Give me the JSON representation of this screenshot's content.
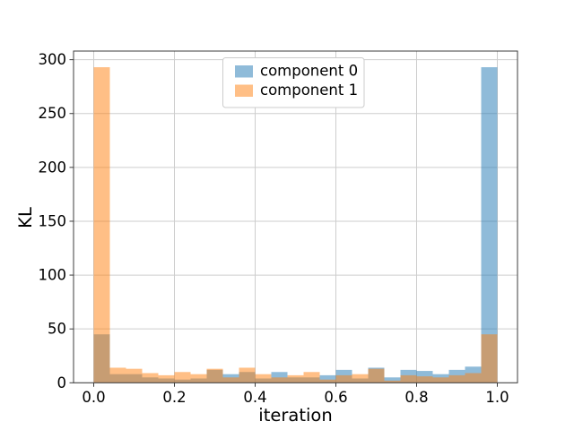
{
  "figure": {
    "xlabel": "iteration",
    "ylabel": "KL",
    "background": "#ffffff",
    "grid_color": "#cdcdcd",
    "spine_color": "#3c3c3c",
    "legend": {
      "border_color": "#cccccc",
      "items": [
        {
          "label": "component 0",
          "swatch": "blue-swatch"
        },
        {
          "label": "component 1",
          "swatch": "orange-swatch"
        }
      ]
    }
  },
  "chart_data": {
    "type": "bar",
    "subtype": "overlapping-histogram",
    "title": "",
    "xlabel": "iteration",
    "ylabel": "KL",
    "bin_start": 0.0,
    "bin_width": 0.04,
    "n_bins": 25,
    "xlim": [
      -0.05,
      1.05
    ],
    "ylim": [
      0,
      308
    ],
    "grid": true,
    "legend_position": "upper center",
    "bar_alpha": 0.5,
    "x_tick_labels": [
      "0.0",
      "0.2",
      "0.4",
      "0.6",
      "0.8",
      "1.0"
    ],
    "y_ticks": [
      0,
      50,
      100,
      150,
      200,
      250,
      300
    ],
    "series": [
      {
        "name": "component 0",
        "color": "#1f77b4",
        "values": [
          45,
          8,
          8,
          5,
          4,
          3,
          4,
          12,
          8,
          10,
          4,
          10,
          5,
          5,
          7,
          12,
          4,
          14,
          5,
          12,
          11,
          8,
          12,
          15,
          293
        ]
      },
      {
        "name": "component 1",
        "color": "#ff7f0e",
        "values": [
          293,
          14,
          13,
          9,
          7,
          10,
          8,
          13,
          5,
          14,
          8,
          5,
          7,
          10,
          3,
          7,
          8,
          13,
          2,
          7,
          6,
          5,
          7,
          9,
          45
        ]
      }
    ]
  }
}
